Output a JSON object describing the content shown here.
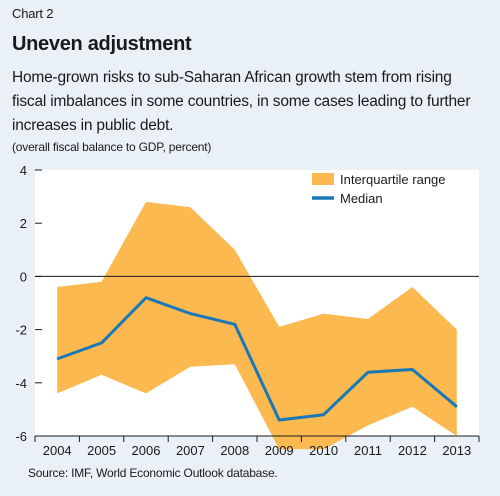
{
  "header": {
    "label": "Chart 2",
    "title": "Uneven adjustment",
    "subtitle": "Home-grown risks to sub-Saharan African growth stem from rising fiscal imbalances in some countries, in some cases leading to further increases in public debt.",
    "unit": "(overall fiscal balance to GDP, percent)"
  },
  "footer": {
    "source": "Source: IMF, World Economic Outlook database."
  },
  "colors": {
    "band": "#fbb950",
    "median": "#1878b8",
    "plot_bg": "#ffffff",
    "zero_line": "#1a1a1a"
  },
  "chart_data": {
    "type": "area",
    "x": [
      "2004",
      "2005",
      "2006",
      "2007",
      "2008",
      "2009",
      "2010",
      "2011",
      "2012",
      "2013"
    ],
    "ylim": [
      -6,
      4
    ],
    "yticks": [
      4,
      2,
      0,
      -2,
      -4,
      -6
    ],
    "ytick_labels": [
      "4",
      "2",
      "0",
      "-2",
      "-4",
      "-6"
    ],
    "legend_position": "top-right",
    "grid": false,
    "series": [
      {
        "name": "Interquartile range",
        "kind": "band",
        "upper": [
          -0.4,
          -0.2,
          2.8,
          2.6,
          1.0,
          -1.9,
          -1.4,
          -1.6,
          -0.4,
          -2.0
        ],
        "lower": [
          -4.4,
          -3.7,
          -4.4,
          -3.4,
          -3.3,
          -6.5,
          -6.5,
          -5.6,
          -4.9,
          -6.0
        ]
      },
      {
        "name": "Median",
        "kind": "line",
        "values": [
          -3.1,
          -2.5,
          -0.8,
          -1.4,
          -1.8,
          -5.4,
          -5.2,
          -3.6,
          -3.5,
          -4.9
        ]
      }
    ]
  }
}
